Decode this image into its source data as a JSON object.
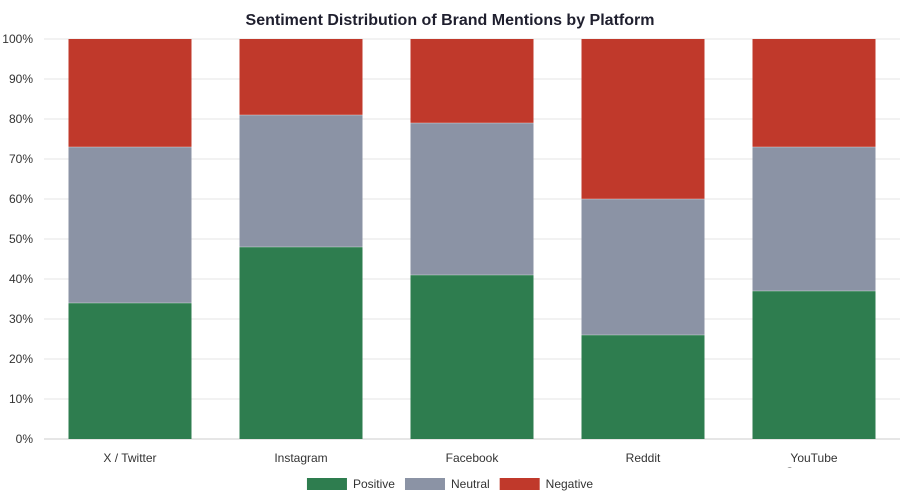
{
  "chart_data": {
    "type": "bar",
    "stacked": true,
    "title": "Sentiment Distribution of Brand Mentions by Platform",
    "xlabel": "",
    "ylabel": "",
    "categories": [
      "X / Twitter",
      "Instagram",
      "Facebook",
      "Reddit",
      "YouTube Comments"
    ],
    "series": [
      {
        "name": "Positive",
        "color": "#2e7d4f",
        "values": [
          34,
          48,
          41,
          26,
          37
        ]
      },
      {
        "name": "Neutral",
        "color": "#8b93a5",
        "values": [
          39,
          33,
          38,
          34,
          36
        ]
      },
      {
        "name": "Negative",
        "color": "#c0392b",
        "values": [
          27,
          19,
          21,
          40,
          27
        ]
      }
    ],
    "ylim": [
      0,
      100
    ],
    "yticks": [
      "0%",
      "10%",
      "20%",
      "30%",
      "40%",
      "50%",
      "60%",
      "70%",
      "80%",
      "90%",
      "100%"
    ],
    "grid": true,
    "legend_position": "bottom"
  }
}
